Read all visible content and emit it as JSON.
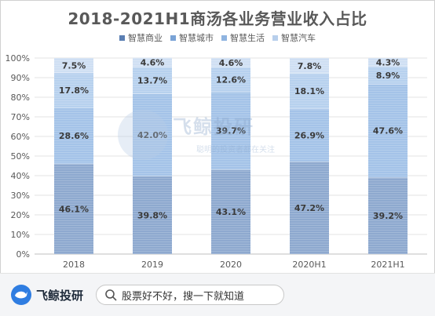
{
  "chart_data": {
    "type": "bar",
    "stacked": true,
    "title": "2018-2021H1商汤各业务营业收入占比",
    "categories": [
      "2018",
      "2019",
      "2020",
      "2020H1",
      "2021H1"
    ],
    "series": [
      {
        "name": "智慧商业",
        "values": [
          46.1,
          39.8,
          43.1,
          47.2,
          39.2
        ],
        "labels": [
          "46.1%",
          "39.8%",
          "43.1%",
          "47.2%",
          "39.2%"
        ],
        "color": "#8ea9cf"
      },
      {
        "name": "智慧城市",
        "values": [
          28.6,
          42.0,
          39.7,
          26.9,
          47.6
        ],
        "labels": [
          "28.6%",
          "42.0%",
          "39.7%",
          "26.9%",
          "47.6%"
        ],
        "color": "#a4c3e8"
      },
      {
        "name": "智慧生活",
        "values": [
          17.8,
          13.7,
          12.6,
          18.1,
          8.9
        ],
        "labels": [
          "17.8%",
          "13.7%",
          "12.6%",
          "18.1%",
          "8.9%"
        ],
        "color": "#b7d1ee"
      },
      {
        "name": "智慧汽车",
        "values": [
          7.5,
          4.6,
          4.6,
          7.8,
          4.3
        ],
        "labels": [
          "7.5%",
          "4.6%",
          "4.6%",
          "7.8%",
          "4.3%"
        ],
        "color": "#cfdff3"
      }
    ],
    "yticks": [
      "0%",
      "10%",
      "20%",
      "30%",
      "40%",
      "50%",
      "60%",
      "70%",
      "80%",
      "90%",
      "100%"
    ],
    "ylim": [
      0,
      100
    ],
    "grid": true,
    "legend_position": "top",
    "legend_swatch_colors": [
      "#5b7fb3",
      "#7aa3d6",
      "#8fb4e0",
      "#b8cfec"
    ]
  },
  "watermark": {
    "text": "飞鲸投研",
    "subtext": "聪明的投资者都在关注"
  },
  "footer": {
    "brand_name": "飞鲸投研",
    "search_text": "股票好不好，搜一下就知道",
    "brand_color": "#2f7de1"
  }
}
